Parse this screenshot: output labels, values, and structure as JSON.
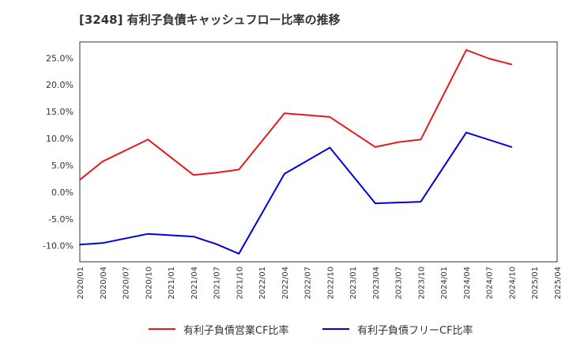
{
  "title": "[3248]  有利子負債キャッシュフロー比率の推移",
  "chart_data": {
    "type": "line",
    "x": [
      "2020/01",
      "2020/04",
      "2020/07",
      "2020/10",
      "2021/01",
      "2021/04",
      "2021/07",
      "2021/10",
      "2022/01",
      "2022/04",
      "2022/07",
      "2022/10",
      "2023/01",
      "2023/04",
      "2023/07",
      "2023/10",
      "2024/01",
      "2024/04",
      "2024/07",
      "2024/10",
      "2025/01",
      "2025/04"
    ],
    "series": [
      {
        "name": "有利子負債営業CF比率",
        "color": "#e41a1c",
        "values": [
          2.3,
          5.7,
          null,
          9.8,
          null,
          3.2,
          3.6,
          4.2,
          null,
          14.7,
          null,
          14.0,
          null,
          8.4,
          9.3,
          9.8,
          null,
          26.5,
          24.9,
          23.8,
          null,
          null
        ]
      },
      {
        "name": "有利子負債フリーCF比率",
        "color": "#0000dd",
        "values": [
          -9.8,
          -9.5,
          null,
          -7.8,
          null,
          -8.3,
          -9.7,
          -11.5,
          null,
          3.4,
          null,
          8.3,
          null,
          -2.1,
          null,
          -1.8,
          null,
          11.1,
          null,
          8.4,
          null,
          null
        ]
      }
    ],
    "yticks": [
      -10,
      -5,
      0,
      5,
      10,
      15,
      20,
      25
    ],
    "ytick_labels": [
      "-10.0%",
      "-5.0%",
      "0.0%",
      "5.0%",
      "10.0%",
      "15.0%",
      "20.0%",
      "25.0%"
    ],
    "ylim": [
      -13.0,
      28.0
    ],
    "grid": true,
    "legend_position": "bottom"
  }
}
